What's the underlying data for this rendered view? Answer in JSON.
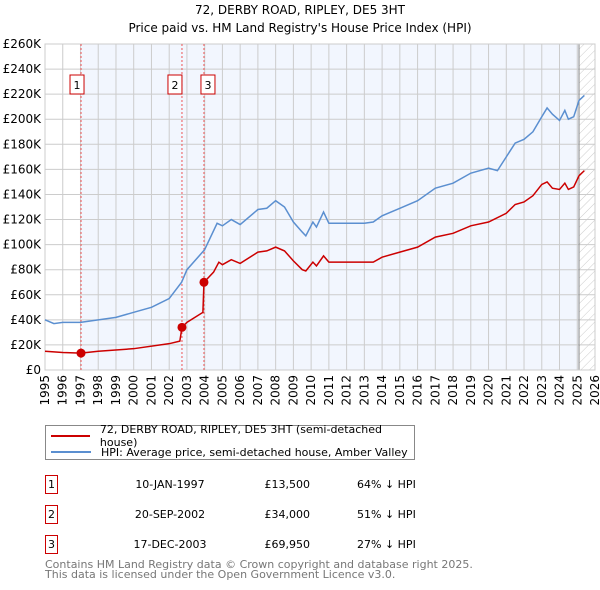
{
  "chart_data": {
    "type": "line",
    "title": "72, DERBY ROAD, RIPLEY, DE5 3HT",
    "subtitle": "Price paid vs. HM Land Registry's House Price Index (HPI)",
    "xlim": [
      1995,
      2026
    ],
    "ylim": [
      0,
      260000
    ],
    "yticks": [
      {
        "v": 0,
        "l": "£0"
      },
      {
        "v": 20000,
        "l": "£20K"
      },
      {
        "v": 40000,
        "l": "£40K"
      },
      {
        "v": 60000,
        "l": "£60K"
      },
      {
        "v": 80000,
        "l": "£80K"
      },
      {
        "v": 100000,
        "l": "£100K"
      },
      {
        "v": 120000,
        "l": "£120K"
      },
      {
        "v": 140000,
        "l": "£140K"
      },
      {
        "v": 160000,
        "l": "£160K"
      },
      {
        "v": 180000,
        "l": "£180K"
      },
      {
        "v": 200000,
        "l": "£200K"
      },
      {
        "v": 220000,
        "l": "£220K"
      },
      {
        "v": 240000,
        "l": "£240K"
      },
      {
        "v": 260000,
        "l": "£260K"
      }
    ],
    "xticks": [
      "1995",
      "1996",
      "1997",
      "1998",
      "1999",
      "2000",
      "2001",
      "2002",
      "2003",
      "2004",
      "2005",
      "2006",
      "2007",
      "2008",
      "2009",
      "2010",
      "2011",
      "2012",
      "2013",
      "2014",
      "2015",
      "2016",
      "2017",
      "2018",
      "2019",
      "2020",
      "2021",
      "2022",
      "2023",
      "2024",
      "2025",
      "2026"
    ],
    "grid": true,
    "series": [
      {
        "name": "72, DERBY ROAD, RIPLEY, DE5 3HT (semi-detached house)",
        "color": "#cc0000",
        "x": [
          1995,
          1996,
          1997.03,
          1998,
          2000,
          2002,
          2002.6,
          2002.72,
          2003,
          2003.9,
          2003.96,
          2004.5,
          2004.8,
          2005,
          2005.5,
          2006,
          2007,
          2007.5,
          2008,
          2008.5,
          2009,
          2009.5,
          2009.7,
          2010.1,
          2010.3,
          2010.7,
          2011,
          2012,
          2013,
          2013.5,
          2014,
          2015,
          2016,
          2017,
          2018,
          2019,
          2020,
          2021,
          2021.5,
          2022,
          2022.5,
          2023,
          2023.3,
          2023.6,
          2024,
          2024.3,
          2024.5,
          2024.8,
          2025.1,
          2025.4
        ],
        "y": [
          15000,
          14000,
          13500,
          15000,
          17000,
          21000,
          23000,
          34000,
          38000,
          46000,
          69950,
          78000,
          86000,
          84000,
          88000,
          85000,
          94000,
          95000,
          98000,
          95000,
          87000,
          80000,
          79000,
          86000,
          83000,
          91000,
          86000,
          86000,
          86000,
          86000,
          90000,
          94000,
          98000,
          106000,
          109000,
          115000,
          118000,
          125000,
          132000,
          134000,
          139000,
          148000,
          150000,
          145000,
          144000,
          149000,
          144000,
          146000,
          155000,
          159000
        ]
      },
      {
        "name": "HPI: Average price, semi-detached house, Amber Valley",
        "color": "#5b8fd0",
        "x": [
          1995,
          1995.5,
          1996,
          1997,
          1998,
          1999,
          2000,
          2001,
          2002,
          2002.7,
          2003,
          2004,
          2004.7,
          2005,
          2005.5,
          2006,
          2007,
          2007.5,
          2008,
          2008.5,
          2009,
          2009.5,
          2009.7,
          2010.1,
          2010.3,
          2010.7,
          2011,
          2012,
          2013,
          2013.5,
          2014,
          2015,
          2016,
          2017,
          2018,
          2019,
          2020,
          2020.5,
          2021,
          2021.5,
          2022,
          2022.5,
          2023,
          2023.3,
          2023.6,
          2024,
          2024.3,
          2024.5,
          2024.8,
          2025.1,
          2025.4
        ],
        "y": [
          40000,
          37000,
          38000,
          38000,
          40000,
          42000,
          46000,
          50000,
          57000,
          70000,
          80000,
          96000,
          117000,
          115000,
          120000,
          116000,
          128000,
          129000,
          135000,
          130000,
          118000,
          110000,
          107000,
          118000,
          114000,
          126000,
          117000,
          117000,
          117000,
          118000,
          123000,
          129000,
          135000,
          145000,
          149000,
          157000,
          161000,
          159000,
          170000,
          181000,
          184000,
          190000,
          202000,
          209000,
          204000,
          199000,
          207000,
          200000,
          202000,
          215000,
          219000
        ]
      }
    ],
    "transactions": [
      {
        "n": "1",
        "x": 1997.03,
        "y": 13500,
        "date": "10-JAN-1997",
        "price": "£13,500",
        "hpi": "64% ↓ HPI"
      },
      {
        "n": "2",
        "x": 2002.72,
        "y": 34000,
        "date": "20-SEP-2002",
        "price": "£34,000",
        "hpi": "51% ↓ HPI"
      },
      {
        "n": "3",
        "x": 2003.96,
        "y": 69950,
        "date": "17-DEC-2003",
        "price": "£69,950",
        "hpi": "27% ↓ HPI"
      }
    ],
    "data_end": 2025.1
  },
  "footer": {
    "line1": "Contains HM Land Registry data © Crown copyright and database right 2025.",
    "line2": "This data is licensed under the Open Government Licence v3.0."
  }
}
